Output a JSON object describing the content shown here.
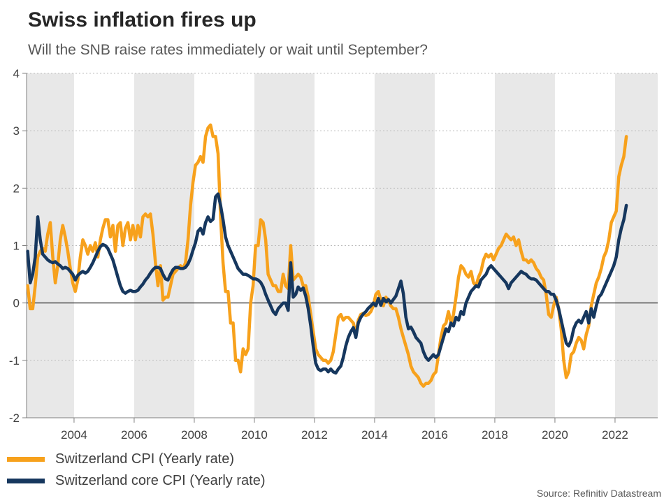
{
  "header": {
    "title": "Swiss inflation fires up",
    "subtitle": "Will the SNB raise rates immediately or wait until September?"
  },
  "legend": {
    "items": [
      {
        "label": "Switzerland CPI (Yearly rate)",
        "color": "#F7A11C"
      },
      {
        "label": "Switzerland core CPI (Yearly rate)",
        "color": "#16375E"
      }
    ]
  },
  "source": "Source: Refinitiv Datastream",
  "chart_data": {
    "type": "line",
    "title": "Swiss inflation fires up",
    "subtitle": "Will the SNB raise rates immediately or wait until September?",
    "xlabel": "",
    "ylabel": "",
    "xlim": [
      2002.42,
      2023.42
    ],
    "ylim": [
      -2,
      4
    ],
    "x_ticks": [
      2004,
      2006,
      2008,
      2010,
      2012,
      2014,
      2016,
      2018,
      2020,
      2022
    ],
    "y_ticks": [
      -2,
      -1,
      0,
      1,
      2,
      3,
      4
    ],
    "grid": "dotted-horizontal",
    "zero_line": true,
    "legend_position": "bottom-left",
    "background_bands": [
      [
        2002.42,
        2004
      ],
      [
        2006,
        2008
      ],
      [
        2010,
        2012
      ],
      [
        2014,
        2016
      ],
      [
        2018,
        2020
      ],
      [
        2022,
        2023.42
      ]
    ],
    "band_color": "#E8E8E8",
    "x_start": 2002.4583,
    "x_step": 0.0833333,
    "series": [
      {
        "name": "Switzerland CPI (Yearly rate)",
        "color": "#F7A11C",
        "width": 4.5,
        "values": [
          0.3,
          -0.1,
          -0.1,
          0.3,
          0.8,
          0.9,
          0.95,
          0.9,
          1.2,
          1.4,
          0.8,
          0.35,
          0.65,
          1.1,
          1.35,
          1.15,
          0.9,
          0.6,
          0.35,
          0.2,
          0.4,
          0.8,
          1.1,
          1.0,
          0.85,
          1.0,
          0.9,
          1.05,
          0.8,
          1.1,
          1.3,
          1.45,
          1.45,
          1.15,
          1.35,
          0.9,
          1.35,
          1.4,
          1.0,
          1.3,
          1.4,
          1.1,
          1.35,
          1.1,
          1.35,
          1.15,
          1.5,
          1.55,
          1.5,
          1.55,
          1.2,
          0.7,
          0.3,
          0.65,
          0.05,
          0.1,
          0.1,
          0.3,
          0.5,
          0.55,
          0.6,
          0.65,
          0.6,
          0.7,
          1.1,
          1.7,
          2.1,
          2.4,
          2.45,
          2.55,
          2.45,
          2.9,
          3.05,
          3.1,
          2.9,
          2.9,
          2.6,
          1.5,
          0.7,
          0.2,
          0.2,
          -0.35,
          -0.35,
          -1.0,
          -1.0,
          -1.2,
          -0.8,
          -0.9,
          -0.8,
          0.0,
          0.3,
          1.0,
          1.0,
          1.45,
          1.4,
          1.1,
          0.5,
          0.4,
          0.3,
          0.3,
          0.2,
          0.2,
          0.5,
          0.3,
          0.25,
          1.0,
          0.4,
          0.45,
          0.5,
          0.45,
          0.3,
          0.3,
          0.1,
          -0.2,
          -0.5,
          -0.8,
          -0.9,
          -0.95,
          -1.0,
          -1.0,
          -1.05,
          -1.0,
          -0.85,
          -0.55,
          -0.25,
          -0.2,
          -0.3,
          -0.25,
          -0.25,
          -0.3,
          -0.35,
          -0.55,
          -0.3,
          -0.2,
          -0.18,
          -0.22,
          -0.2,
          -0.15,
          -0.05,
          0.15,
          0.2,
          0.05,
          -0.05,
          0.1,
          0.05,
          -0.05,
          -0.1,
          -0.1,
          -0.25,
          -0.45,
          -0.6,
          -0.75,
          -0.9,
          -1.1,
          -1.2,
          -1.25,
          -1.3,
          -1.4,
          -1.45,
          -1.4,
          -1.4,
          -1.35,
          -1.25,
          -1.2,
          -0.9,
          -0.6,
          -0.4,
          -0.35,
          -0.15,
          -0.35,
          -0.2,
          0.1,
          0.45,
          0.65,
          0.6,
          0.5,
          0.45,
          0.55,
          0.35,
          0.3,
          0.45,
          0.55,
          0.75,
          0.85,
          0.8,
          0.85,
          0.75,
          0.85,
          0.95,
          1.0,
          1.1,
          1.2,
          1.15,
          1.1,
          1.15,
          1.0,
          1.1,
          0.9,
          0.75,
          0.75,
          0.7,
          0.75,
          0.7,
          0.6,
          0.55,
          0.45,
          0.4,
          0.15,
          -0.2,
          -0.25,
          -0.05,
          0.1,
          -0.1,
          -0.45,
          -1.0,
          -1.3,
          -1.2,
          -0.9,
          -0.85,
          -0.7,
          -0.6,
          -0.65,
          -0.8,
          -0.55,
          -0.4,
          -0.05,
          0.15,
          0.35,
          0.45,
          0.6,
          0.8,
          0.9,
          1.1,
          1.4,
          1.5,
          1.6,
          2.2,
          2.4,
          2.55,
          2.9
        ]
      },
      {
        "name": "Switzerland core CPI (Yearly rate)",
        "color": "#16375E",
        "width": 4.5,
        "values": [
          0.9,
          0.35,
          0.5,
          0.8,
          1.5,
          1.1,
          0.85,
          0.8,
          0.75,
          0.72,
          0.7,
          0.72,
          0.68,
          0.65,
          0.6,
          0.62,
          0.6,
          0.55,
          0.5,
          0.4,
          0.48,
          0.52,
          0.55,
          0.52,
          0.55,
          0.62,
          0.7,
          0.8,
          0.9,
          0.98,
          1.02,
          1.0,
          0.95,
          0.85,
          0.75,
          0.6,
          0.45,
          0.3,
          0.2,
          0.17,
          0.2,
          0.22,
          0.2,
          0.2,
          0.22,
          0.28,
          0.33,
          0.4,
          0.45,
          0.52,
          0.58,
          0.62,
          0.62,
          0.6,
          0.5,
          0.42,
          0.4,
          0.5,
          0.58,
          0.62,
          0.62,
          0.6,
          0.6,
          0.62,
          0.68,
          0.78,
          0.92,
          1.05,
          1.25,
          1.3,
          1.2,
          1.4,
          1.5,
          1.42,
          1.46,
          1.85,
          1.9,
          1.7,
          1.45,
          1.15,
          1.0,
          0.9,
          0.8,
          0.7,
          0.6,
          0.55,
          0.5,
          0.5,
          0.48,
          0.45,
          0.42,
          0.42,
          0.4,
          0.36,
          0.28,
          0.15,
          0.05,
          -0.05,
          -0.15,
          -0.2,
          -0.1,
          -0.05,
          0.0,
          0.0,
          -0.13,
          0.7,
          0.1,
          0.15,
          0.28,
          0.22,
          0.26,
          0.12,
          -0.1,
          -0.4,
          -0.75,
          -1.05,
          -1.15,
          -1.18,
          -1.15,
          -1.15,
          -1.2,
          -1.15,
          -1.2,
          -1.22,
          -1.15,
          -1.1,
          -0.95,
          -0.75,
          -0.6,
          -0.5,
          -0.43,
          -0.6,
          -0.35,
          -0.25,
          -0.19,
          -0.15,
          -0.09,
          -0.05,
          0.0,
          -0.05,
          0.08,
          -0.04,
          0.08,
          0.02,
          0.06,
          0.0,
          0.06,
          0.12,
          0.25,
          0.38,
          0.16,
          -0.25,
          -0.45,
          -0.42,
          -0.5,
          -0.6,
          -0.65,
          -0.7,
          -0.85,
          -0.95,
          -1.0,
          -0.95,
          -0.9,
          -0.95,
          -0.9,
          -0.75,
          -0.6,
          -0.45,
          -0.5,
          -0.35,
          -0.4,
          -0.25,
          -0.3,
          -0.15,
          -0.2,
          0.0,
          0.1,
          0.2,
          0.25,
          0.3,
          0.28,
          0.4,
          0.45,
          0.5,
          0.6,
          0.65,
          0.6,
          0.55,
          0.5,
          0.45,
          0.4,
          0.35,
          0.25,
          0.35,
          0.4,
          0.45,
          0.5,
          0.55,
          0.52,
          0.5,
          0.45,
          0.42,
          0.42,
          0.4,
          0.35,
          0.3,
          0.25,
          0.2,
          0.2,
          0.15,
          0.15,
          0.05,
          -0.1,
          -0.3,
          -0.5,
          -0.7,
          -0.75,
          -0.65,
          -0.45,
          -0.35,
          -0.3,
          -0.35,
          -0.25,
          -0.15,
          -0.35,
          -0.1,
          -0.25,
          -0.05,
          0.1,
          0.15,
          0.25,
          0.35,
          0.45,
          0.55,
          0.65,
          0.8,
          1.1,
          1.3,
          1.45,
          1.7
        ]
      }
    ]
  }
}
